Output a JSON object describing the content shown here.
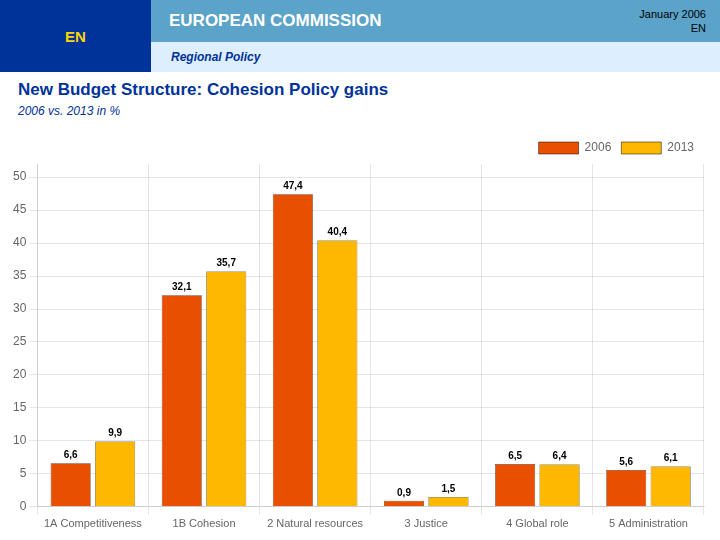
{
  "chart_data": {
    "type": "bar",
    "title": "New Budget Structure: Cohesion Policy gains",
    "subtitle": "2006 vs. 2013 in %",
    "annotations": [
      "EUROPEAN COMMISSION",
      "Regional Policy",
      "January 2006",
      "EN"
    ],
    "categories": [
      "1A Competitiveness",
      "1B Cohesion",
      "2 Natural resources",
      "3 Justice",
      "4 Global role",
      "5 Administration"
    ],
    "series": [
      {
        "name": "2006",
        "color": "#E85000",
        "values": [
          6.6,
          32.1,
          47.4,
          0.9,
          6.5,
          5.6
        ],
        "value_labels": [
          "6,6",
          "32,1",
          "47,4",
          "0,9",
          "6,5",
          "5,6"
        ]
      },
      {
        "name": "2013",
        "color": "#FFB800",
        "values": [
          9.9,
          35.7,
          40.4,
          1.5,
          6.4,
          6.1
        ],
        "value_labels": [
          "9,9",
          "35,7",
          "40,4",
          "1,5",
          "6,4",
          "6,1"
        ]
      }
    ],
    "ylim": [
      0,
      52
    ],
    "yticks": [
      0,
      5,
      10,
      15,
      20,
      25,
      30,
      35,
      40,
      45,
      50
    ],
    "grid": true,
    "legend": "upper right",
    "data_labels": true
  }
}
